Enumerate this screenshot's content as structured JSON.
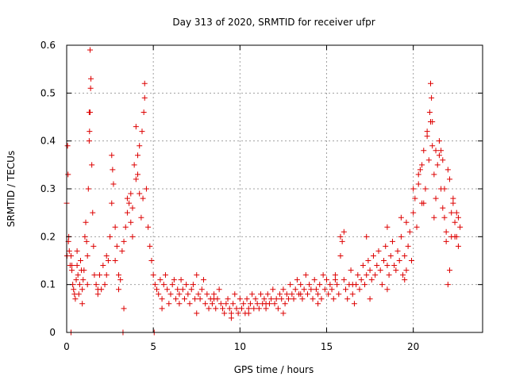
{
  "chart_data": {
    "type": "scatter",
    "title": "Day 313 of 2020, SRMTID for receiver ufpr",
    "xlabel": "GPS time / hours",
    "ylabel": "SRMTID / TECUs",
    "xlim": [
      0,
      24
    ],
    "ylim": [
      0,
      0.6
    ],
    "xticks": [
      0,
      5,
      10,
      15,
      20
    ],
    "yticks": [
      0,
      0.1,
      0.2,
      0.3,
      0.4,
      0.5,
      0.6
    ],
    "xtick_labels": [
      "0",
      "5",
      "10",
      "15",
      "20"
    ],
    "ytick_labels": [
      "0",
      "0.1",
      "0.2",
      "0.3",
      "0.4",
      "0.5",
      "0.6"
    ],
    "grid": true,
    "marker": "+",
    "series_color": "#dd0000",
    "series": [
      {
        "name": "SRMTID",
        "x": [
          0.0,
          0.05,
          0.08,
          0.12,
          0.15,
          0.2,
          0.25,
          0.3,
          0.35,
          0.4,
          0.45,
          0.5,
          0.55,
          0.6,
          0.65,
          0.7,
          0.75,
          0.8,
          0.85,
          0.9,
          0.95,
          1.0,
          1.05,
          1.1,
          1.15,
          1.2,
          1.25,
          1.3,
          1.35,
          1.4,
          1.45,
          1.5,
          1.55,
          1.6,
          1.7,
          1.8,
          1.9,
          2.0,
          2.1,
          2.2,
          2.3,
          2.4,
          2.5,
          2.6,
          2.7,
          2.8,
          2.9,
          3.0,
          3.1,
          3.2,
          3.3,
          3.4,
          3.5,
          3.6,
          3.7,
          3.8,
          3.9,
          4.0,
          4.1,
          4.2,
          4.3,
          4.4,
          4.5,
          4.6,
          4.7,
          4.8,
          4.9,
          5.0,
          5.1,
          5.2,
          5.3,
          5.4,
          5.5,
          5.6,
          5.7,
          5.8,
          5.9,
          6.0,
          6.1,
          6.2,
          6.3,
          6.4,
          6.5,
          6.6,
          6.7,
          6.8,
          6.9,
          7.0,
          7.1,
          7.2,
          7.3,
          7.4,
          7.5,
          7.6,
          7.7,
          7.8,
          7.9,
          8.0,
          8.1,
          8.2,
          8.3,
          8.4,
          8.5,
          8.6,
          8.7,
          8.8,
          8.9,
          9.0,
          9.1,
          9.2,
          9.3,
          9.4,
          9.5,
          9.6,
          9.7,
          9.8,
          9.9,
          10.0,
          10.1,
          10.2,
          10.3,
          10.4,
          10.5,
          10.6,
          10.7,
          10.8,
          10.9,
          11.0,
          11.1,
          11.2,
          11.3,
          11.4,
          11.5,
          11.6,
          11.7,
          11.8,
          11.9,
          12.0,
          12.1,
          12.2,
          12.3,
          12.4,
          12.5,
          12.6,
          12.7,
          12.8,
          12.9,
          13.0,
          13.1,
          13.2,
          13.3,
          13.4,
          13.5,
          13.6,
          13.7,
          13.8,
          13.9,
          14.0,
          14.1,
          14.2,
          14.3,
          14.4,
          14.5,
          14.6,
          14.7,
          14.8,
          14.9,
          15.0,
          15.1,
          15.2,
          15.3,
          15.4,
          15.5,
          15.6,
          15.7,
          15.8,
          15.9,
          16.0,
          16.1,
          16.2,
          16.3,
          16.4,
          16.5,
          16.6,
          16.7,
          16.8,
          16.9,
          17.0,
          17.1,
          17.2,
          17.3,
          17.4,
          17.5,
          17.6,
          17.7,
          17.8,
          17.9,
          18.0,
          18.1,
          18.2,
          18.3,
          18.4,
          18.5,
          18.6,
          18.7,
          18.8,
          18.9,
          19.0,
          19.1,
          19.2,
          19.3,
          19.4,
          19.5,
          19.6,
          19.7,
          19.8,
          19.9,
          20.0,
          20.1,
          20.2,
          20.3,
          20.4,
          20.5,
          20.6,
          20.7,
          20.8,
          20.9,
          21.0,
          21.1,
          21.2,
          21.3,
          21.4,
          21.5,
          21.6,
          21.7,
          21.8,
          21.9,
          22.0,
          22.1,
          22.2,
          22.3,
          22.4,
          22.5,
          22.6,
          22.7,
          0.25,
          3.25,
          5.05,
          0.02,
          0.1,
          1.35,
          1.38,
          1.3,
          1.32,
          4.5,
          4.45,
          4.35,
          4.2,
          21.0,
          21.05,
          20.95,
          21.1,
          20.8,
          21.5,
          21.6,
          21.7,
          22.0,
          22.1,
          2.6,
          2.65,
          3.5,
          3.7,
          4.0,
          4.1,
          15.8,
          16.0,
          17.3,
          18.5,
          19.3,
          19.6,
          20.0,
          20.3,
          20.5,
          21.3,
          21.8,
          22.3,
          22.5,
          22.6,
          0.3,
          0.6,
          0.9,
          1.2,
          1.8,
          2.3,
          2.8,
          3.0,
          3.3,
          3.8,
          5.5,
          6.5,
          7.5,
          8.5,
          9.5,
          10.5,
          11.5,
          12.5,
          13.5,
          14.5,
          15.5,
          16.5,
          17.5,
          18.5,
          19.5,
          20.6,
          21.2,
          21.9,
          22.2,
          22.4
        ],
        "y": [
          0.27,
          0.39,
          0.33,
          0.2,
          0.17,
          0.14,
          0.16,
          0.13,
          0.1,
          0.09,
          0.08,
          0.07,
          0.11,
          0.14,
          0.12,
          0.08,
          0.1,
          0.15,
          0.13,
          0.09,
          0.11,
          0.13,
          0.2,
          0.23,
          0.19,
          0.16,
          0.3,
          0.4,
          0.46,
          0.53,
          0.35,
          0.25,
          0.18,
          0.12,
          0.1,
          0.08,
          0.12,
          0.09,
          0.14,
          0.1,
          0.12,
          0.15,
          0.2,
          0.27,
          0.31,
          0.22,
          0.18,
          0.12,
          0.11,
          0.17,
          0.19,
          0.22,
          0.25,
          0.27,
          0.23,
          0.26,
          0.35,
          0.43,
          0.37,
          0.29,
          0.24,
          0.28,
          0.49,
          0.3,
          0.22,
          0.18,
          0.15,
          0.12,
          0.1,
          0.09,
          0.08,
          0.11,
          0.07,
          0.1,
          0.12,
          0.09,
          0.06,
          0.08,
          0.1,
          0.11,
          0.07,
          0.09,
          0.08,
          0.11,
          0.09,
          0.07,
          0.1,
          0.08,
          0.06,
          0.09,
          0.1,
          0.07,
          0.12,
          0.08,
          0.07,
          0.09,
          0.11,
          0.06,
          0.08,
          0.05,
          0.07,
          0.06,
          0.08,
          0.05,
          0.07,
          0.09,
          0.06,
          0.05,
          0.04,
          0.06,
          0.07,
          0.05,
          0.04,
          0.06,
          0.08,
          0.05,
          0.04,
          0.07,
          0.05,
          0.06,
          0.04,
          0.07,
          0.05,
          0.06,
          0.08,
          0.05,
          0.07,
          0.06,
          0.05,
          0.08,
          0.06,
          0.07,
          0.05,
          0.08,
          0.06,
          0.07,
          0.09,
          0.06,
          0.07,
          0.05,
          0.08,
          0.07,
          0.09,
          0.06,
          0.08,
          0.07,
          0.1,
          0.08,
          0.07,
          0.09,
          0.11,
          0.08,
          0.1,
          0.07,
          0.09,
          0.12,
          0.08,
          0.1,
          0.09,
          0.07,
          0.11,
          0.09,
          0.08,
          0.1,
          0.07,
          0.12,
          0.09,
          0.11,
          0.08,
          0.1,
          0.09,
          0.07,
          0.12,
          0.1,
          0.08,
          0.16,
          0.19,
          0.11,
          0.09,
          0.07,
          0.1,
          0.13,
          0.08,
          0.06,
          0.1,
          0.12,
          0.09,
          0.11,
          0.14,
          0.1,
          0.12,
          0.15,
          0.13,
          0.11,
          0.16,
          0.12,
          0.14,
          0.17,
          0.13,
          0.1,
          0.15,
          0.18,
          0.14,
          0.12,
          0.16,
          0.19,
          0.14,
          0.13,
          0.17,
          0.15,
          0.2,
          0.12,
          0.16,
          0.13,
          0.18,
          0.21,
          0.15,
          0.25,
          0.28,
          0.22,
          0.31,
          0.34,
          0.27,
          0.38,
          0.3,
          0.41,
          0.36,
          0.44,
          0.39,
          0.33,
          0.28,
          0.35,
          0.37,
          0.3,
          0.26,
          0.24,
          0.21,
          0.1,
          0.13,
          0.2,
          0.27,
          0.23,
          0.2,
          0.24,
          0.22,
          0.0,
          0.0,
          0.0,
          0.16,
          0.19,
          0.59,
          0.51,
          0.46,
          0.42,
          0.52,
          0.46,
          0.42,
          0.39,
          0.52,
          0.49,
          0.46,
          0.44,
          0.42,
          0.4,
          0.38,
          0.36,
          0.34,
          0.32,
          0.37,
          0.34,
          0.28,
          0.29,
          0.32,
          0.33,
          0.2,
          0.21,
          0.2,
          0.22,
          0.24,
          0.23,
          0.3,
          0.33,
          0.35,
          0.38,
          0.3,
          0.28,
          0.25,
          0.18,
          0.14,
          0.17,
          0.06,
          0.1,
          0.09,
          0.16,
          0.15,
          0.09,
          0.05,
          0.2,
          0.05,
          0.06,
          0.04,
          0.07,
          0.03,
          0.04,
          0.06,
          0.04,
          0.08,
          0.06,
          0.11,
          0.1,
          0.07,
          0.09,
          0.11,
          0.27,
          0.24,
          0.19,
          0.25,
          0.2
        ]
      }
    ]
  }
}
